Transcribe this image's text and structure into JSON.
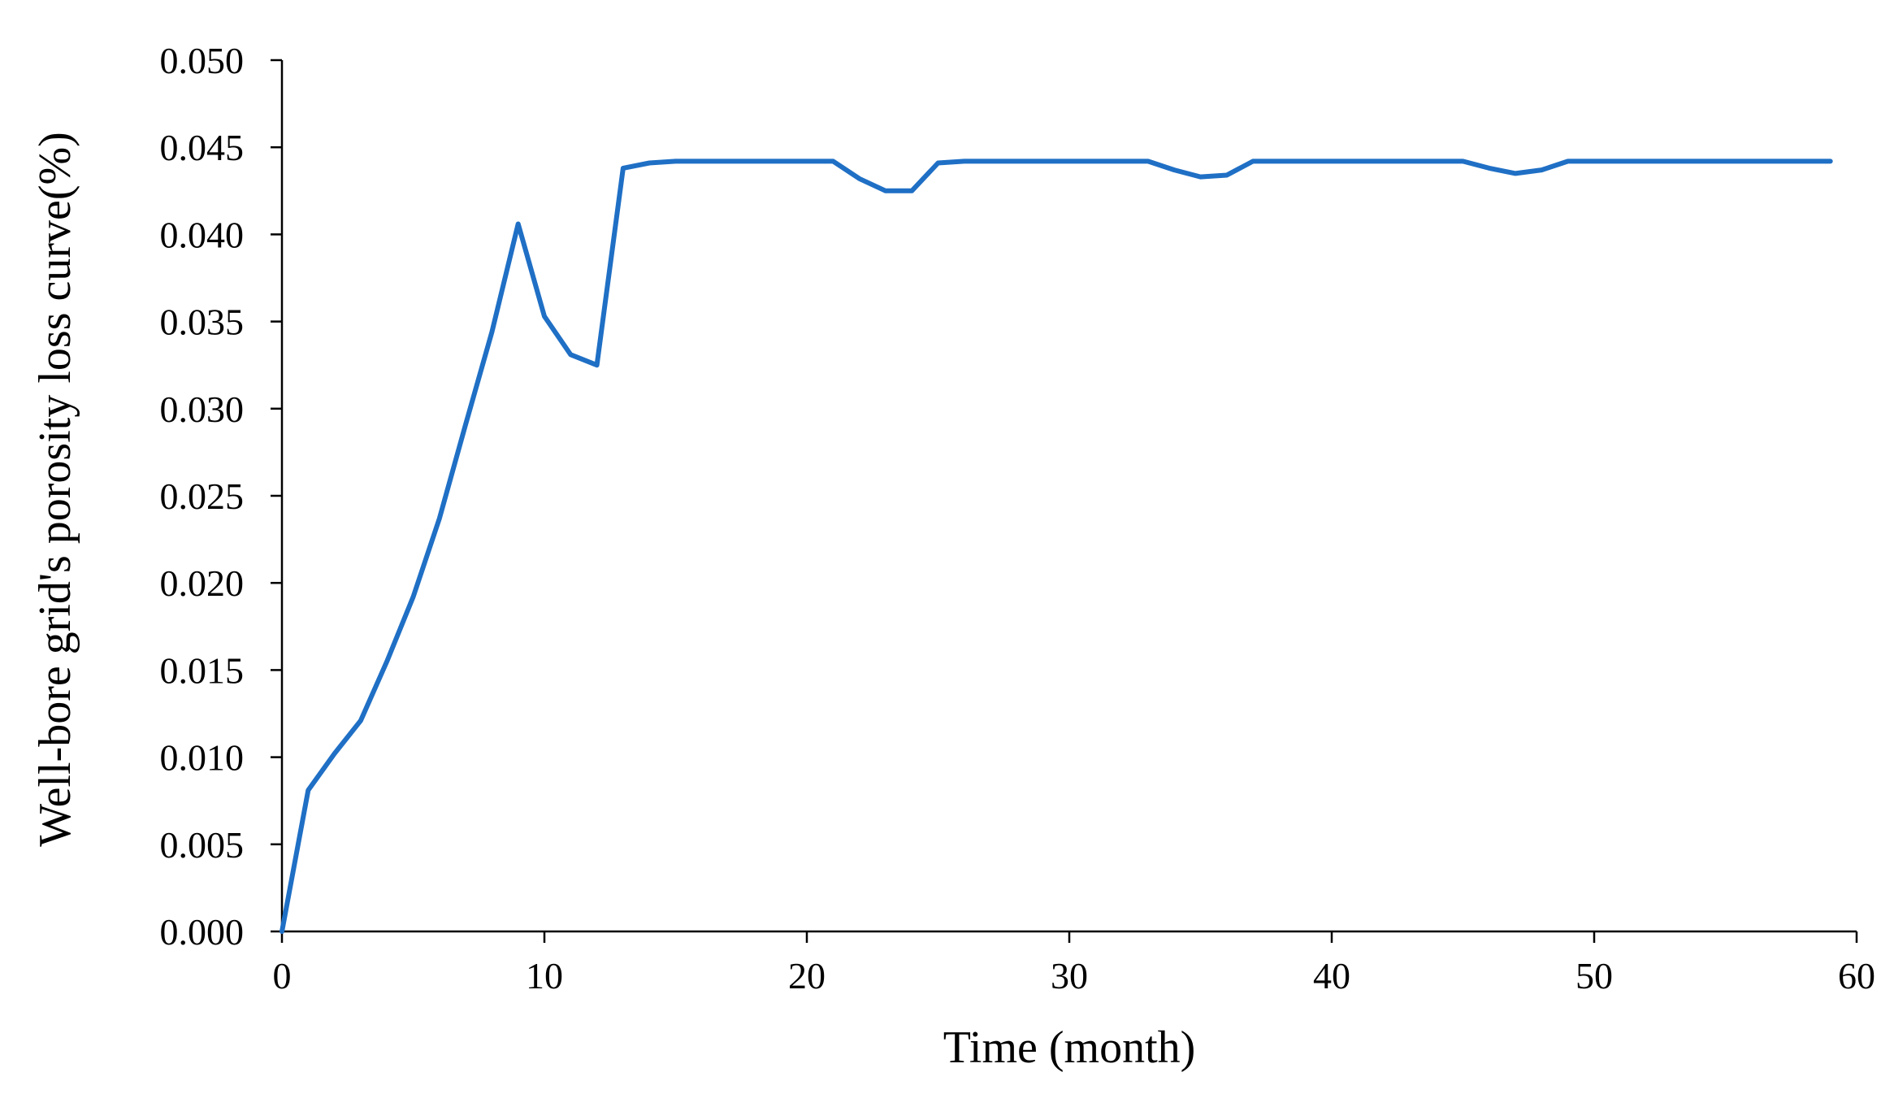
{
  "chart_data": {
    "type": "line",
    "title": "",
    "xlabel": "Time (month)",
    "ylabel": "Well-bore grid's porosity  loss curve(%)",
    "xlim": [
      0,
      60
    ],
    "ylim": [
      0,
      0.05
    ],
    "x_ticks": [
      "0",
      "10",
      "20",
      "30",
      "40",
      "50",
      "60"
    ],
    "y_ticks": [
      "0.000",
      "0.005",
      "0.010",
      "0.015",
      "0.020",
      "0.025",
      "0.030",
      "0.035",
      "0.040",
      "0.045",
      "0.050"
    ],
    "grid": false,
    "legend": "none",
    "colors": {
      "line": "#1F6FC5",
      "axis": "#000000"
    },
    "series": [
      {
        "x": [
          0,
          1,
          2,
          3,
          4,
          5,
          6,
          7,
          8,
          9,
          10,
          11,
          12,
          13,
          14,
          15,
          16,
          17,
          18,
          19,
          20,
          21,
          22,
          23,
          24,
          25,
          26,
          27,
          28,
          29,
          30,
          31,
          32,
          33,
          34,
          35,
          36,
          37,
          38,
          39,
          40,
          41,
          42,
          43,
          44,
          45,
          46,
          47,
          48,
          49,
          50,
          51,
          52,
          53,
          54,
          55,
          56,
          57,
          58,
          59
        ],
        "values": [
          0.0,
          0.0081,
          0.0102,
          0.0121,
          0.0155,
          0.0192,
          0.0237,
          0.0291,
          0.0344,
          0.0406,
          0.0353,
          0.0331,
          0.0325,
          0.0438,
          0.0441,
          0.0442,
          0.0442,
          0.0442,
          0.0442,
          0.0442,
          0.0442,
          0.0442,
          0.0432,
          0.0425,
          0.0425,
          0.0441,
          0.0442,
          0.0442,
          0.0442,
          0.0442,
          0.0442,
          0.0442,
          0.0442,
          0.0442,
          0.0437,
          0.0433,
          0.0434,
          0.0442,
          0.0442,
          0.0442,
          0.0442,
          0.0442,
          0.0442,
          0.0442,
          0.0442,
          0.0442,
          0.0438,
          0.0435,
          0.0437,
          0.0442,
          0.0442,
          0.0442,
          0.0442,
          0.0442,
          0.0442,
          0.0442,
          0.0442,
          0.0442,
          0.0442,
          0.0442
        ]
      }
    ]
  }
}
